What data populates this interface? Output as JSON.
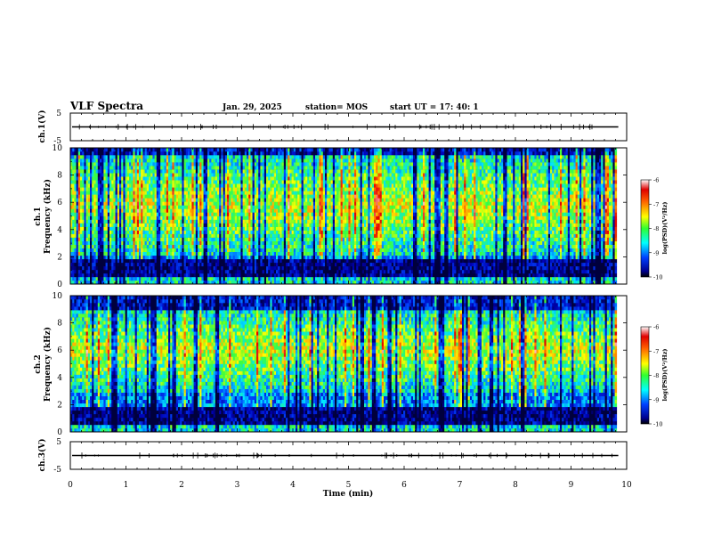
{
  "header": {
    "title": "VLF Spectra",
    "date": "Jan. 29, 2025",
    "station": "station= MOS",
    "start_ut": "start  UT =  17: 40: 1"
  },
  "colors": {
    "waveform": "#000000",
    "background": "#ffffff",
    "frame": "#000000"
  },
  "chart_data": [
    {
      "type": "line",
      "panel": "ch1-waveform",
      "ylabel": "ch.1(V)",
      "ylim": [
        -5,
        5
      ],
      "yticks": [
        "5",
        "-5"
      ],
      "xlim": [
        0,
        10
      ],
      "baseline_value": 0
    },
    {
      "type": "heatmap",
      "panel": "ch1-spectrogram",
      "ylabel_line1": "ch.1",
      "ylabel_line2": "Frequency (kHz)",
      "ylim": [
        0,
        10
      ],
      "yticks": [
        "0",
        "2",
        "4",
        "6",
        "8",
        "10"
      ],
      "xlim": [
        0,
        9.85
      ],
      "bright_band_khz": [
        2,
        9.5
      ],
      "dark_band_khz": [
        0.6,
        1.8
      ],
      "colorbar": {
        "title": "log(PSD)(V²/Hz)",
        "range": [
          -10,
          -6
        ],
        "ticks": [
          "-6",
          "-7",
          "-8",
          "-9",
          "-10"
        ]
      }
    },
    {
      "type": "heatmap",
      "panel": "ch2-spectrogram",
      "ylabel_line1": "ch.2",
      "ylabel_line2": "Frequency (kHz)",
      "ylim": [
        0,
        10
      ],
      "yticks": [
        "0",
        "2",
        "4",
        "6",
        "8",
        "10"
      ],
      "xlim": [
        0,
        9.85
      ],
      "bright_band_khz": [
        3,
        9
      ],
      "dark_band_khz": [
        0.6,
        1.8
      ],
      "colorbar": {
        "title": "log(PSD)(V²/Hz)",
        "range": [
          -10,
          -6
        ],
        "ticks": [
          "-6",
          "-7",
          "-8",
          "-9",
          "-10"
        ]
      }
    },
    {
      "type": "line",
      "panel": "ch3-waveform",
      "ylabel": "ch.3(V)",
      "ylim": [
        -5,
        5
      ],
      "yticks": [
        "5",
        "-5"
      ],
      "xlim": [
        0,
        10
      ],
      "baseline_value": 0
    }
  ],
  "xaxis": {
    "label": "Time (min)",
    "range": [
      0,
      10
    ],
    "ticks": [
      "0",
      "1",
      "2",
      "3",
      "4",
      "5",
      "6",
      "7",
      "8",
      "9",
      "10"
    ]
  }
}
